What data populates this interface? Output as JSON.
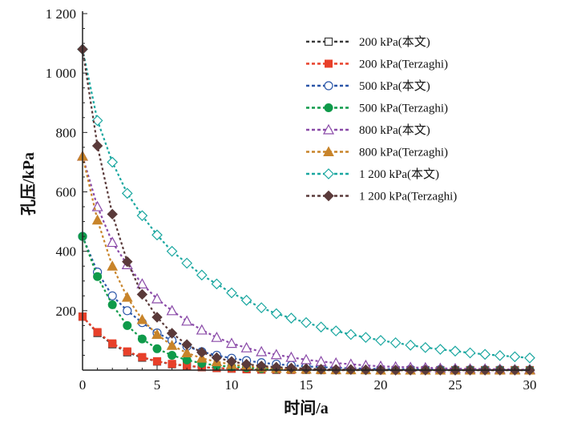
{
  "chart_data": {
    "type": "line",
    "xlabel": "时间/a",
    "ylabel": "孔压/kPa",
    "xlim": [
      0,
      30
    ],
    "ylim": [
      0,
      1200
    ],
    "x_ticks": [
      {
        "value": 0,
        "label": "0"
      },
      {
        "value": 5,
        "label": "5"
      },
      {
        "value": 10,
        "label": "10"
      },
      {
        "value": 15,
        "label": "15"
      },
      {
        "value": 20,
        "label": "20"
      },
      {
        "value": 25,
        "label": "25"
      },
      {
        "value": 30,
        "label": "30"
      }
    ],
    "y_ticks": [
      {
        "value": 200,
        "label": "200"
      },
      {
        "value": 400,
        "label": "400"
      },
      {
        "value": 600,
        "label": "600"
      },
      {
        "value": 800,
        "label": "800"
      },
      {
        "value": 1000,
        "label": "1 000"
      },
      {
        "value": 1200,
        "label": "1 200"
      }
    ],
    "grid": false,
    "legend_position": "top-right",
    "x": [
      0,
      1,
      2,
      3,
      4,
      5,
      6,
      7,
      8,
      9,
      10,
      11,
      12,
      13,
      14,
      15,
      16,
      17,
      18,
      19,
      20,
      21,
      22,
      23,
      24,
      25,
      26,
      27,
      28,
      29,
      30
    ],
    "series": [
      {
        "name": "200 kPa(本文)",
        "color": "#3a3a3a",
        "marker": "square",
        "filled": false,
        "values": [
          180,
          125,
          87,
          60,
          42,
          29,
          20,
          14,
          10,
          7,
          5,
          3,
          2,
          1,
          1,
          1,
          0,
          0,
          0,
          0,
          0,
          0,
          0,
          0,
          0,
          0,
          0,
          0,
          0,
          0,
          0
        ]
      },
      {
        "name": "200 kPa(Terzaghi)",
        "color": "#e8402a",
        "marker": "square",
        "filled": true,
        "values": [
          180,
          128,
          90,
          63,
          44,
          30,
          21,
          15,
          10,
          7,
          5,
          3,
          2,
          2,
          1,
          1,
          0,
          0,
          0,
          0,
          0,
          0,
          0,
          0,
          0,
          0,
          0,
          0,
          0,
          0,
          0
        ]
      },
      {
        "name": "500 kPa(本文)",
        "color": "#2a56a8",
        "marker": "circle",
        "filled": false,
        "values": [
          450,
          330,
          250,
          200,
          160,
          125,
          100,
          80,
          62,
          50,
          40,
          32,
          25,
          20,
          16,
          13,
          10,
          8,
          6,
          5,
          4,
          3,
          3,
          2,
          2,
          1,
          1,
          1,
          1,
          0,
          0
        ]
      },
      {
        "name": "500 kPa(Terzaghi)",
        "color": "#0f9a4a",
        "marker": "circle",
        "filled": true,
        "values": [
          450,
          315,
          220,
          150,
          105,
          72,
          50,
          34,
          23,
          16,
          11,
          8,
          5,
          4,
          3,
          2,
          1,
          1,
          1,
          0,
          0,
          0,
          0,
          0,
          0,
          0,
          0,
          0,
          0,
          0,
          0
        ]
      },
      {
        "name": "800 kPa(本文)",
        "color": "#8a4aa8",
        "marker": "triangle",
        "filled": false,
        "values": [
          720,
          550,
          430,
          355,
          290,
          240,
          200,
          165,
          135,
          110,
          90,
          75,
          62,
          52,
          43,
          35,
          29,
          24,
          20,
          16,
          13,
          11,
          9,
          8,
          6,
          5,
          4,
          4,
          3,
          2,
          2
        ]
      },
      {
        "name": "800 kPa(Terzaghi)",
        "color": "#c8842a",
        "marker": "triangle",
        "filled": true,
        "values": [
          720,
          505,
          350,
          245,
          170,
          120,
          83,
          58,
          40,
          28,
          19,
          13,
          9,
          6,
          4,
          3,
          2,
          1,
          1,
          1,
          0,
          0,
          0,
          0,
          0,
          0,
          0,
          0,
          0,
          0,
          0
        ]
      },
      {
        "name": "1 200 kPa(本文)",
        "color": "#1aa7a0",
        "marker": "diamond",
        "filled": false,
        "values": [
          1080,
          840,
          700,
          595,
          520,
          455,
          400,
          360,
          320,
          290,
          260,
          235,
          210,
          190,
          175,
          160,
          145,
          132,
          120,
          110,
          100,
          92,
          84,
          76,
          70,
          64,
          58,
          53,
          49,
          45,
          41
        ]
      },
      {
        "name": "1 200 kPa(Terzaghi)",
        "color": "#5a3a3a",
        "marker": "diamond",
        "filled": true,
        "values": [
          1080,
          755,
          525,
          365,
          255,
          178,
          124,
          86,
          60,
          42,
          29,
          20,
          14,
          10,
          7,
          5,
          3,
          2,
          2,
          1,
          1,
          0,
          0,
          0,
          0,
          0,
          0,
          0,
          0,
          0,
          0
        ]
      }
    ]
  }
}
